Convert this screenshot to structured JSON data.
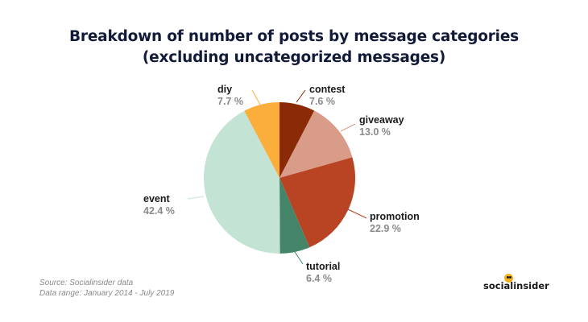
{
  "title_line1": "Breakdown of number of posts by message categories",
  "title_line2": "(excluding uncategorized messages)",
  "source": "Source: Socialinsider data",
  "date_range": "Data range: January 2014 - July 2019",
  "brand": "socialinsider",
  "colors": {
    "contest": "#8b2a06",
    "giveaway": "#d99c88",
    "promotion": "#b94424",
    "tutorial": "#44856a",
    "event": "#c3e3d4",
    "diy": "#fbae3c",
    "brand_dot": "#f5b11d"
  },
  "chart_data": {
    "type": "pie",
    "title": "Breakdown of number of posts by message categories (excluding uncategorized messages)",
    "start": "12 o'clock",
    "direction": "clockwise",
    "slices": [
      {
        "label": "contest",
        "value": 7.6,
        "value_label": "7.6 %",
        "color": "#8b2a06"
      },
      {
        "label": "giveaway",
        "value": 13.0,
        "value_label": "13.0 %",
        "color": "#d99c88"
      },
      {
        "label": "promotion",
        "value": 22.9,
        "value_label": "22.9 %",
        "color": "#b94424"
      },
      {
        "label": "tutorial",
        "value": 6.4,
        "value_label": "6.4 %",
        "color": "#44856a"
      },
      {
        "label": "event",
        "value": 42.4,
        "value_label": "42.4 %",
        "color": "#c3e3d4"
      },
      {
        "label": "diy",
        "value": 7.7,
        "value_label": "7.7 %",
        "color": "#fbae3c"
      }
    ]
  }
}
